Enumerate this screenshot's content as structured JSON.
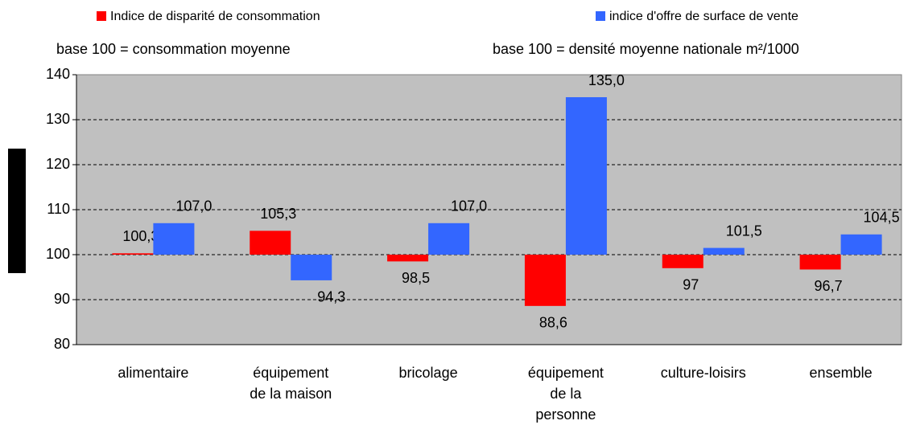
{
  "chart_data": {
    "type": "bar",
    "categories": [
      "alimentaire",
      "équipement de la maison",
      "bricolage",
      "équipement de la personne",
      "culture-loisirs",
      "ensemble"
    ],
    "series": [
      {
        "name": "Indice de disparité de consommation",
        "base": "base 100 = consommation moyenne",
        "color": "#ff0000",
        "values": [
          100.3,
          105.3,
          98.5,
          88.6,
          97,
          96.7
        ],
        "value_labels": [
          "100,3",
          "105,3",
          "98,5",
          "88,6",
          "97",
          "96,7"
        ]
      },
      {
        "name": "indice d'offre de surface de vente",
        "base": "base 100 = densité moyenne nationale m²/1000",
        "color": "#3366ff",
        "values": [
          107.0,
          94.3,
          107.0,
          135.0,
          101.5,
          104.5
        ],
        "value_labels": [
          "107,0",
          "94,3",
          "107,0",
          "135,0",
          "101,5",
          "104,5"
        ]
      }
    ],
    "bar_base": 100,
    "ylim": [
      80,
      140
    ],
    "yticks": [
      80,
      90,
      100,
      110,
      120,
      130,
      140
    ],
    "grid": true
  }
}
